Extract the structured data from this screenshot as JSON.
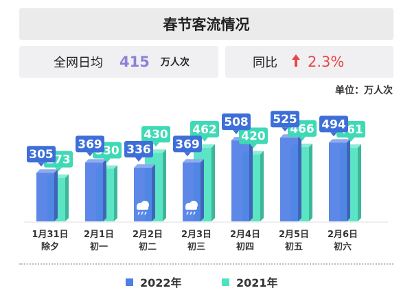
{
  "header": {
    "title": "春节客流情况"
  },
  "kpi": {
    "daily_label": "全网日均",
    "daily_value": "415",
    "daily_unit": "万人次",
    "yoy_label": "同比",
    "yoy_value": "2.3%",
    "yoy_icon": "arrow-up-icon"
  },
  "unit_note": "单位：万人次",
  "colors": {
    "series2022": "#4f7ee6",
    "series2021": "#4de3c0",
    "arrow": "#e54848",
    "kpi_value": "#8b82d6"
  },
  "chart_data": {
    "type": "bar",
    "categories": [
      {
        "date": "1月31日",
        "lunar": "除夕",
        "weather": ""
      },
      {
        "date": "2月1日",
        "lunar": "初一",
        "weather": ""
      },
      {
        "date": "2月2日",
        "lunar": "初二",
        "weather": "rain-cloud-icon"
      },
      {
        "date": "2月3日",
        "lunar": "初三",
        "weather": "rain-cloud-icon"
      },
      {
        "date": "2月4日",
        "lunar": "初四",
        "weather": ""
      },
      {
        "date": "2月5日",
        "lunar": "初五",
        "weather": ""
      },
      {
        "date": "2月6日",
        "lunar": "初六",
        "weather": ""
      }
    ],
    "series": [
      {
        "name": "2022年",
        "values": [
          305,
          369,
          336,
          369,
          508,
          525,
          494
        ]
      },
      {
        "name": "2021年",
        "values": [
          273,
          330,
          430,
          462,
          420,
          466,
          461
        ]
      }
    ],
    "ylim": [
      0,
      600
    ]
  }
}
